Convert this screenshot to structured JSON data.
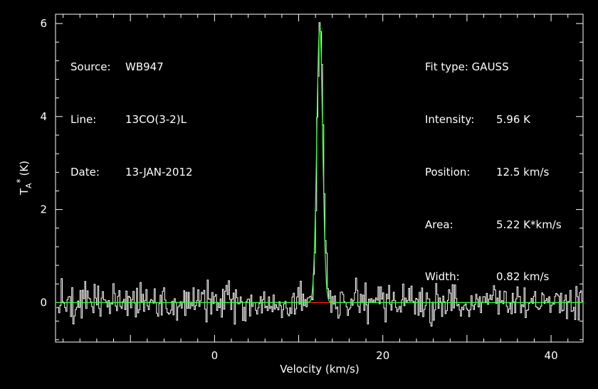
{
  "chart_data": {
    "type": "line",
    "xlabel": "Velocity (km/s)",
    "ylabel": "T",
    "ylabel_sub": "A",
    "ylabel_sup": "*",
    "ylabel_unit": "(K)",
    "xlim": [
      -18.9,
      43.8
    ],
    "ylim": [
      -0.85,
      6.2
    ],
    "xticks": [
      0,
      20,
      40
    ],
    "yticks": [
      0,
      2,
      4,
      6
    ],
    "xtick_labels": [
      "0",
      "20",
      "40"
    ],
    "ytick_labels": [
      "0",
      "2",
      "4",
      "6"
    ],
    "grid": false,
    "colors": {
      "spectrum": "#ffffff",
      "fit": "#33ff33",
      "baseline": "#ff2020",
      "axes": "#ffffff",
      "background": "#000000"
    },
    "series": [
      {
        "role": "spectrum",
        "style": "step",
        "x_start": -18.8,
        "x_step": 0.14,
        "noise_rms": 0.2,
        "values": []
      },
      {
        "role": "fit",
        "model": "gauss",
        "amplitude": 5.96,
        "center": 12.5,
        "fwhm": 0.82
      }
    ],
    "info_left": [
      {
        "key": "Source:",
        "value": "WB947"
      },
      {
        "key": "Line:",
        "value": "13CO(3-2)L"
      },
      {
        "key": "Date:",
        "value": "13-JAN-2012"
      }
    ],
    "info_right": {
      "header": "Fit type: GAUSS",
      "rows": [
        {
          "key": "Intensity:",
          "value": "5.96 K"
        },
        {
          "key": "Position:",
          "value": "12.5 km/s"
        },
        {
          "key": "Area:",
          "value": "5.22 K*km/s"
        },
        {
          "key": "Width:",
          "value": "0.82 km/s"
        }
      ]
    }
  }
}
